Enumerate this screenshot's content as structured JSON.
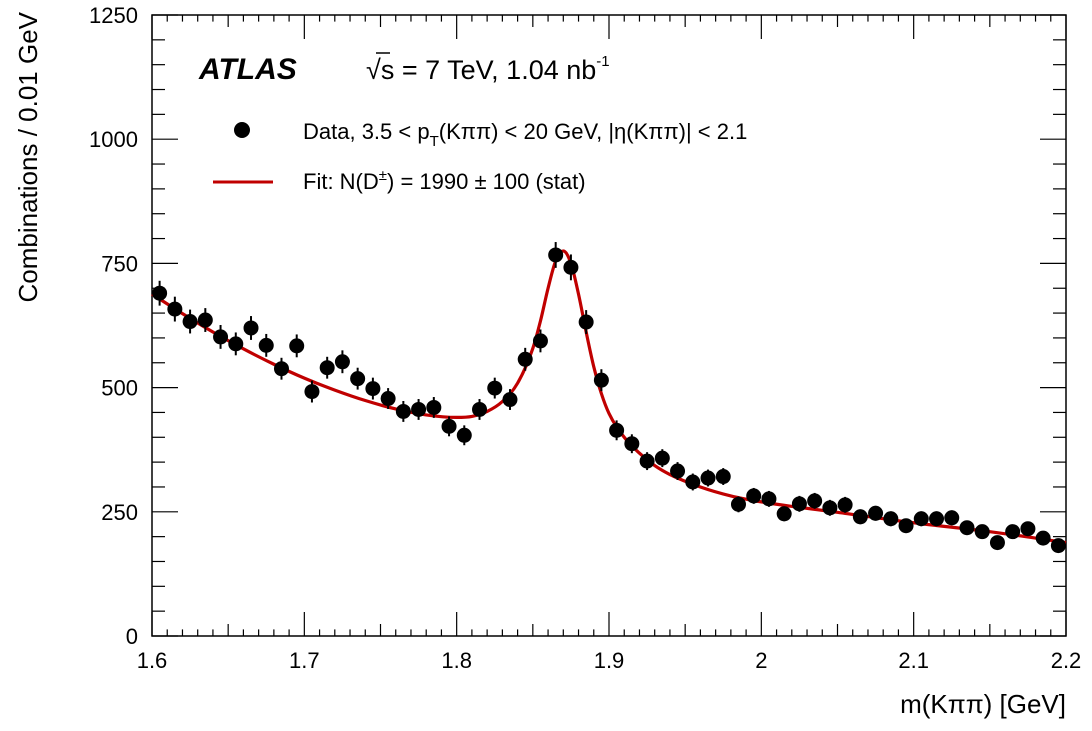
{
  "chart_data": {
    "type": "scatter",
    "xlabel": "m(Kππ) [GeV]",
    "ylabel": "Combinations / 0.01 GeV",
    "xlim": [
      1.6,
      2.2
    ],
    "ylim": [
      0,
      1250
    ],
    "x_ticks": [
      1.6,
      1.7,
      1.8,
      1.9,
      2.0,
      2.1,
      2.2
    ],
    "x_tick_labels": [
      "1.6",
      "1.7",
      "1.8",
      "1.9",
      "2",
      "2.1",
      "2.2"
    ],
    "y_ticks": [
      0,
      250,
      500,
      750,
      1000,
      1250
    ],
    "y_tick_labels": [
      "0",
      "250",
      "500",
      "750",
      "1000",
      "1250"
    ],
    "grid": false,
    "legend_position": "top-left",
    "experiment_label": "ATLAS",
    "energy_label": {
      "sqrt": "√",
      "var": "s",
      "rest": " = 7 TeV, 1.04 nb",
      "sup": "-1"
    },
    "legend": {
      "data_entry": {
        "a": "Data, 3.5 < p",
        "sub": "T",
        "b": "(Kππ) < 20 GeV, |η(Kππ)| < 2.1"
      },
      "fit_entry": {
        "a": "Fit: N(D",
        "sup": "±",
        "b": ") = 1990 ± 100 (stat)"
      }
    },
    "colors": {
      "data": "#000000",
      "fit": "#c00000"
    },
    "series": [
      {
        "name": "Data",
        "x": [
          1.605,
          1.615,
          1.625,
          1.635,
          1.645,
          1.655,
          1.665,
          1.675,
          1.685,
          1.695,
          1.705,
          1.715,
          1.725,
          1.735,
          1.745,
          1.755,
          1.765,
          1.775,
          1.785,
          1.795,
          1.805,
          1.815,
          1.825,
          1.835,
          1.845,
          1.855,
          1.865,
          1.875,
          1.885,
          1.895,
          1.905,
          1.915,
          1.925,
          1.935,
          1.945,
          1.955,
          1.965,
          1.975,
          1.985,
          1.995,
          2.005,
          2.015,
          2.025,
          2.035,
          2.045,
          2.055,
          2.065,
          2.075,
          2.085,
          2.095,
          2.105,
          2.115,
          2.125,
          2.135,
          2.145,
          2.155,
          2.165,
          2.175,
          2.185,
          2.195
        ],
        "y": [
          690,
          658,
          633,
          636,
          602,
          588,
          620,
          585,
          538,
          584,
          492,
          540,
          552,
          518,
          498,
          478,
          452,
          456,
          460,
          422,
          404,
          456,
          499,
          476,
          557,
          594,
          767,
          742,
          632,
          515,
          414,
          387,
          352,
          358,
          332,
          310,
          318,
          321,
          265,
          282,
          276,
          246,
          266,
          272,
          258,
          264,
          240,
          247,
          236,
          222,
          236,
          236,
          238,
          218,
          210,
          188,
          210,
          216,
          197,
          182
        ],
        "y_err": [
          25,
          25,
          24,
          24,
          24,
          23,
          24,
          23,
          22,
          23,
          22,
          22,
          23,
          22,
          22,
          21,
          21,
          21,
          21,
          20,
          20,
          21,
          21,
          21,
          23,
          23,
          26,
          26,
          24,
          22,
          20,
          19,
          18,
          18,
          18,
          17,
          17,
          17,
          16,
          16,
          16,
          15,
          16,
          16,
          16,
          16,
          15,
          15,
          15,
          14,
          15,
          15,
          15,
          14,
          14,
          13,
          14,
          14,
          13,
          13
        ]
      },
      {
        "name": "Fit",
        "x": [
          1.6,
          1.62,
          1.64,
          1.66,
          1.68,
          1.7,
          1.72,
          1.74,
          1.76,
          1.78,
          1.8,
          1.81,
          1.82,
          1.83,
          1.84,
          1.85,
          1.855,
          1.86,
          1.865,
          1.87,
          1.875,
          1.88,
          1.885,
          1.89,
          1.895,
          1.9,
          1.91,
          1.92,
          1.93,
          1.94,
          1.96,
          1.98,
          2.0,
          2.05,
          2.1,
          2.15,
          2.2
        ],
        "y": [
          688,
          649,
          612,
          578,
          547,
          519,
          495,
          474,
          457,
          445,
          440,
          442,
          452,
          472,
          509,
          579,
          634,
          700,
          755,
          775,
          750,
          688,
          612,
          542,
          488,
          448,
          400,
          368,
          343,
          325,
          300,
          282,
          270,
          249,
          228,
          210,
          188
        ]
      }
    ]
  }
}
